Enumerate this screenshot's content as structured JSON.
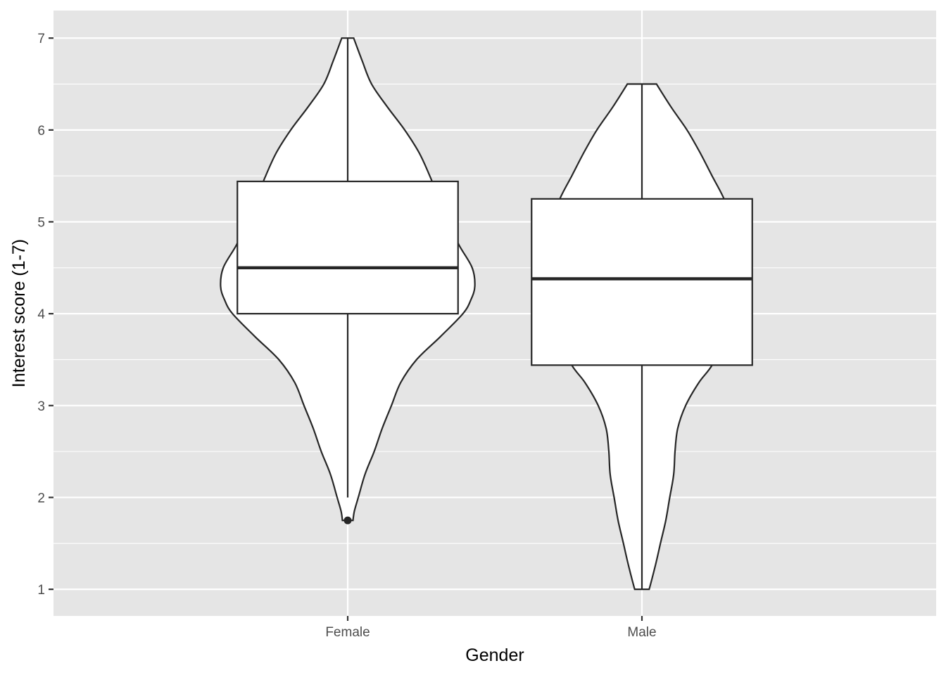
{
  "chart_data": {
    "type": "violin",
    "xlabel": "Gender",
    "ylabel": "Interest score (1-7)",
    "categories": [
      "Female",
      "Male"
    ],
    "yticks": [
      1,
      2,
      3,
      4,
      5,
      6,
      7
    ],
    "ylim": [
      0.71,
      7.3
    ],
    "grid": true,
    "background": "#e5e5e5",
    "grid_color": "#ffffff",
    "line_color": "#262626",
    "fill_color": "#ffffff",
    "groups": [
      {
        "name": "Female",
        "box": {
          "q1": 4.0,
          "median": 4.5,
          "q3": 5.44,
          "whisker_low": 2.0,
          "whisker_high": 7.0
        },
        "outliers": [
          1.75
        ],
        "violin": {
          "y": [
            1.75,
            1.85,
            2.0,
            2.25,
            2.5,
            2.75,
            3.0,
            3.25,
            3.5,
            3.75,
            4.0,
            4.15,
            4.3,
            4.5,
            4.75,
            5.0,
            5.25,
            5.5,
            5.75,
            6.0,
            6.25,
            6.5,
            6.75,
            7.0
          ],
          "width": [
            0.04,
            0.05,
            0.08,
            0.13,
            0.2,
            0.26,
            0.33,
            0.4,
            0.52,
            0.7,
            0.87,
            0.93,
            0.96,
            0.94,
            0.84,
            0.76,
            0.69,
            0.62,
            0.54,
            0.43,
            0.3,
            0.18,
            0.11,
            0.045
          ]
        }
      },
      {
        "name": "Male",
        "box": {
          "q1": 3.44,
          "median": 4.38,
          "q3": 5.25,
          "whisker_low": 1.0,
          "whisker_high": 6.5
        },
        "outliers": [],
        "violin": {
          "y": [
            1.0,
            1.25,
            1.5,
            1.75,
            2.0,
            2.25,
            2.5,
            2.75,
            3.0,
            3.25,
            3.44,
            3.75,
            4.0,
            4.38,
            4.75,
            5.0,
            5.25,
            5.5,
            5.75,
            6.0,
            6.25,
            6.5
          ],
          "width": [
            0.055,
            0.1,
            0.14,
            0.18,
            0.21,
            0.24,
            0.25,
            0.27,
            0.33,
            0.43,
            0.53,
            0.64,
            0.69,
            0.72,
            0.71,
            0.68,
            0.62,
            0.53,
            0.44,
            0.34,
            0.22,
            0.11
          ]
        }
      }
    ]
  }
}
